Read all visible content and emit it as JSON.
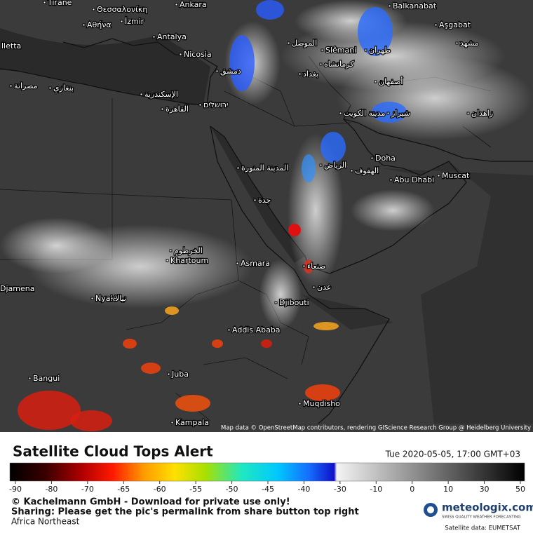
{
  "map": {
    "labels": [
      "Tirane",
      "Θεσσαλονίκη",
      "Ankara",
      "Αθήνα",
      "İzmir",
      "Antalya",
      "lletta",
      "Nicosia",
      "Slêmani",
      "Balkanabat",
      "Aşgabat",
      "Doha",
      "Abu Dhabi",
      "Muscat",
      "Khartoum",
      "الخرطوم",
      "Asmara",
      "Djibouti",
      "Addis Ababa",
      "Juba",
      "Bangui",
      "Kampala",
      "Muqdisho",
      "Nyala",
      "نيالا",
      "Djamena",
      "القاهرة",
      "الإسكندرية",
      "بنغازي",
      "مصراتة",
      "المدينة المنورة",
      "جدة",
      "الرياض",
      "الهفوف",
      "مدينة الكويت",
      "بغداد",
      "الموصل",
      "دمشق",
      "ירושלים",
      "مشهد",
      "أصفهان",
      "شيراز",
      "طهران",
      "كرمانشاه",
      "زاهدان",
      "صنعاء",
      "عدن"
    ],
    "attribution": "Map data © OpenStreetMap contributors, rendering GIScience Research Group @ Heidelberg University"
  },
  "legend": {
    "title": "Satellite Cloud Tops Alert",
    "timestamp": "Tue 2020-05-05, 17:00 GMT+03",
    "ticks": [
      -90,
      -80,
      -70,
      -65,
      -60,
      -55,
      -50,
      -45,
      -40,
      -30,
      -10,
      0,
      10,
      30,
      50
    ]
  },
  "footer": {
    "copyright": "© Kachelmann GmbH - Download for private use only!",
    "sharing": "Sharing: Please get the pic's permalink from share button top right",
    "region": "Africa Northeast",
    "brand": "meteologix.com",
    "tagline": "SWISS QUALITY WEATHER FORECASTING",
    "source": "Satellite data: EUMETSAT"
  }
}
